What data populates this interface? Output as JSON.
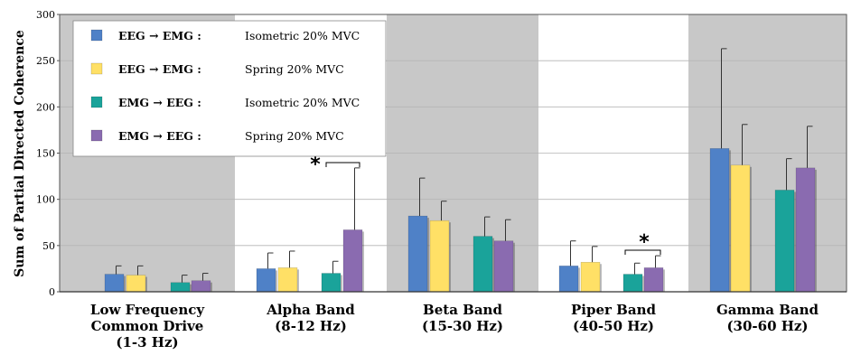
{
  "chart_data": {
    "type": "bar",
    "ylabel": "Sum of Partial Directed Coherence",
    "ylim": [
      0,
      300
    ],
    "yticks": [
      0,
      50,
      100,
      150,
      200,
      250,
      300
    ],
    "categories": [
      [
        "Low Frequency",
        "Common Drive",
        "(1-3 Hz)"
      ],
      [
        "Alpha Band",
        "(8-12 Hz)"
      ],
      [
        "Beta Band",
        "(15-30 Hz)"
      ],
      [
        "Piper Band",
        "(40-50 Hz)"
      ],
      [
        "Gamma Band",
        "(30-60 Hz)"
      ]
    ],
    "band_shading": [
      "gray",
      "white",
      "gray",
      "white",
      "gray"
    ],
    "series": [
      {
        "name": "EEG → EMG :",
        "condition": "Isometric 20% MVC",
        "color": "#4f81c7",
        "values": [
          19,
          25,
          82,
          28,
          155
        ],
        "errors": [
          9,
          17,
          41,
          27,
          108
        ]
      },
      {
        "name": "EEG → EMG :",
        "condition": "Spring 20% MVC",
        "color": "#ffe066",
        "values": [
          18,
          26,
          77,
          32,
          137
        ],
        "errors": [
          10,
          18,
          21,
          17,
          44
        ]
      },
      {
        "name": "EMG → EEG :",
        "condition": "Isometric 20% MVC",
        "color": "#1aa39a",
        "values": [
          10,
          20,
          60,
          19,
          110
        ],
        "errors": [
          8,
          13,
          21,
          12,
          34
        ]
      },
      {
        "name": "EMG → EEG :",
        "condition": "Spring 20% MVC",
        "color": "#8a6bb0",
        "values": [
          12,
          67,
          55,
          26,
          134
        ],
        "errors": [
          8,
          67,
          23,
          13,
          45
        ]
      }
    ],
    "significance": [
      {
        "category_index": 1,
        "label": "*"
      },
      {
        "category_index": 3,
        "label": "*"
      }
    ],
    "legend_placement": "top-left",
    "grid": true
  }
}
